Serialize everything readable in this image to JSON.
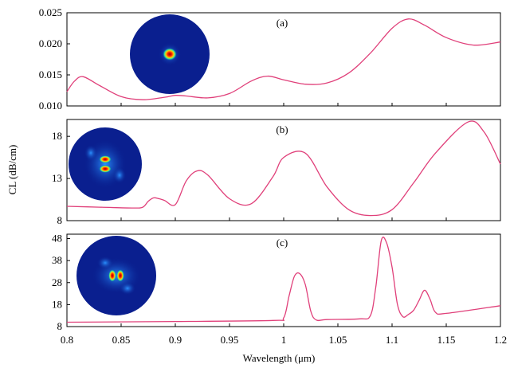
{
  "chart_data": {
    "type": "line",
    "xlabel": "Wavelength  (μm)",
    "ylabel": "CL (dB/cm)",
    "xlim": [
      0.8,
      1.2
    ],
    "x_ticks": [
      "0.8",
      "0.85",
      "0.9",
      "0.95",
      "1",
      "1.05",
      "1.1",
      "1.15",
      "1.2"
    ],
    "line_color": "#e0407a",
    "grid": false,
    "panels": [
      {
        "label": "(a)",
        "ylim": [
          0.01,
          0.025
        ],
        "y_ticks": [
          "0.010",
          "0.015",
          "0.020",
          "0.025"
        ],
        "inset": "fundamental-mode",
        "x": [
          0.8,
          0.807,
          0.815,
          0.83,
          0.85,
          0.87,
          0.89,
          0.9,
          0.91,
          0.93,
          0.95,
          0.97,
          0.985,
          1.0,
          1.02,
          1.04,
          1.06,
          1.08,
          1.1,
          1.115,
          1.13,
          1.15,
          1.175,
          1.2
        ],
        "values": [
          0.0123,
          0.014,
          0.0147,
          0.0133,
          0.0115,
          0.011,
          0.0114,
          0.0117,
          0.0116,
          0.0113,
          0.012,
          0.014,
          0.0148,
          0.0142,
          0.0135,
          0.0137,
          0.0153,
          0.0185,
          0.0225,
          0.024,
          0.023,
          0.021,
          0.0198,
          0.0203
        ]
      },
      {
        "label": "(b)",
        "ylim": [
          8,
          20
        ],
        "y_ticks": [
          "8",
          "13",
          "18"
        ],
        "inset": "high-order-mode-1",
        "x": [
          0.8,
          0.83,
          0.86,
          0.87,
          0.875,
          0.88,
          0.885,
          0.89,
          0.9,
          0.91,
          0.92,
          0.93,
          0.95,
          0.97,
          0.99,
          1.0,
          1.02,
          1.04,
          1.06,
          1.08,
          1.1,
          1.12,
          1.14,
          1.17,
          1.185,
          1.2
        ],
        "values": [
          9.7,
          9.6,
          9.5,
          9.6,
          10.3,
          10.7,
          10.6,
          10.4,
          9.9,
          12.7,
          13.9,
          13.4,
          10.6,
          10.0,
          13.2,
          15.5,
          16.0,
          12.0,
          9.3,
          8.6,
          9.3,
          12.5,
          16.0,
          19.7,
          18.5,
          14.7
        ]
      },
      {
        "label": "(c)",
        "ylim": [
          8,
          50
        ],
        "y_ticks": [
          "8",
          "18",
          "28",
          "38",
          "48"
        ],
        "inset": "high-order-mode-2",
        "x": [
          0.8,
          0.9,
          0.99,
          1.0,
          1.005,
          1.01,
          1.015,
          1.02,
          1.025,
          1.03,
          1.04,
          1.07,
          1.08,
          1.085,
          1.09,
          1.095,
          1.1,
          1.105,
          1.11,
          1.115,
          1.12,
          1.125,
          1.13,
          1.135,
          1.14,
          1.15,
          1.2
        ],
        "values": [
          10.0,
          10.3,
          10.8,
          12.0,
          22.0,
          31.0,
          32.0,
          27.0,
          15.0,
          11.0,
          11.2,
          11.5,
          13.0,
          26.0,
          47.0,
          46.0,
          35.0,
          18.0,
          12.5,
          13.5,
          15.5,
          20.0,
          24.5,
          20.5,
          14.5,
          14.0,
          17.5
        ]
      }
    ]
  }
}
